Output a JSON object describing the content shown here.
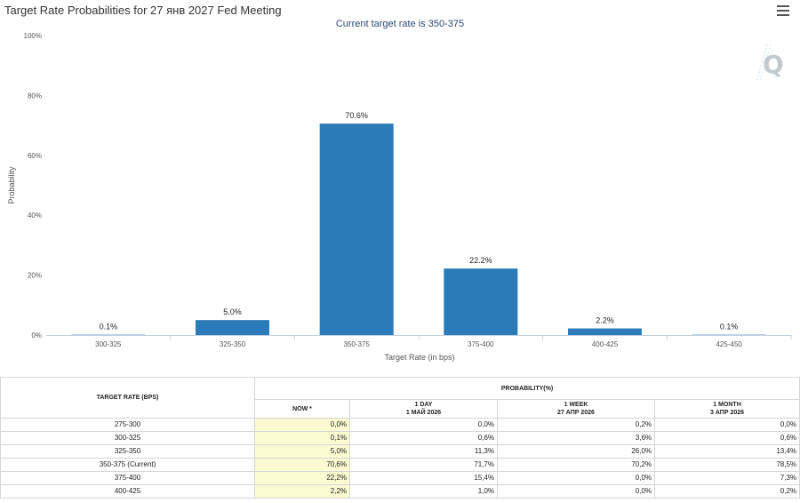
{
  "chart": {
    "title": "Target Rate Probabilities for 27 янв 2027 Fed Meeting",
    "subtitle": "Current target rate is 350-375"
  },
  "colors": {
    "bar": "#2b7bb9",
    "now_highlight": "#fbfad0",
    "subtitle": "#2a4a74"
  },
  "icons": {
    "menu": "hamburger-menu-icon",
    "logo": "quikstrike-q-logo"
  },
  "chart_data": {
    "type": "bar",
    "categories": [
      "300-325",
      "325-350",
      "350-375",
      "375-400",
      "400-425",
      "425-450"
    ],
    "values": [
      0.1,
      5.0,
      70.6,
      22.2,
      2.2,
      0.1
    ],
    "data_labels": [
      "0.1%",
      "5.0%",
      "70.6%",
      "22.2%",
      "2.2%",
      "0.1%"
    ],
    "title": "Target Rate Probabilities for 27 янв 2027 Fed Meeting",
    "subtitle": "Current target rate is 350-375",
    "xlabel": "Target Rate (in bps)",
    "ylabel": "Probability",
    "ylim": [
      0,
      100
    ],
    "yticks": [
      "0%",
      "20%",
      "40%",
      "60%",
      "80%",
      "100%"
    ],
    "ytick_values": [
      0,
      20,
      40,
      60,
      80,
      100
    ],
    "grid": false,
    "legend": "none"
  },
  "table": {
    "header_rate": "TARGET RATE (BPS)",
    "header_prob": "PROBABILITY(%)",
    "columns": [
      {
        "line1": "NOW *",
        "line2": ""
      },
      {
        "line1": "1 DAY",
        "line2": "1 МАЙ 2026"
      },
      {
        "line1": "1 WEEK",
        "line2": "27 АПР 2026"
      },
      {
        "line1": "1 MONTH",
        "line2": "3 АПР 2026"
      }
    ],
    "rows": [
      {
        "rate": "275-300",
        "now": "0,0%",
        "day": "0,0%",
        "week": "0,2%",
        "month": "0,0%"
      },
      {
        "rate": "300-325",
        "now": "0,1%",
        "day": "0,6%",
        "week": "3,6%",
        "month": "0,6%"
      },
      {
        "rate": "325-350",
        "now": "5,0%",
        "day": "11,3%",
        "week": "26,0%",
        "month": "13,4%"
      },
      {
        "rate": "350-375 (Current)",
        "now": "70,6%",
        "day": "71,7%",
        "week": "70,2%",
        "month": "78,5%"
      },
      {
        "rate": "375-400",
        "now": "22,2%",
        "day": "15,4%",
        "week": "0,0%",
        "month": "7,3%"
      },
      {
        "rate": "400-425",
        "now": "2,2%",
        "day": "1,0%",
        "week": "0,0%",
        "month": "0,2%"
      }
    ]
  }
}
